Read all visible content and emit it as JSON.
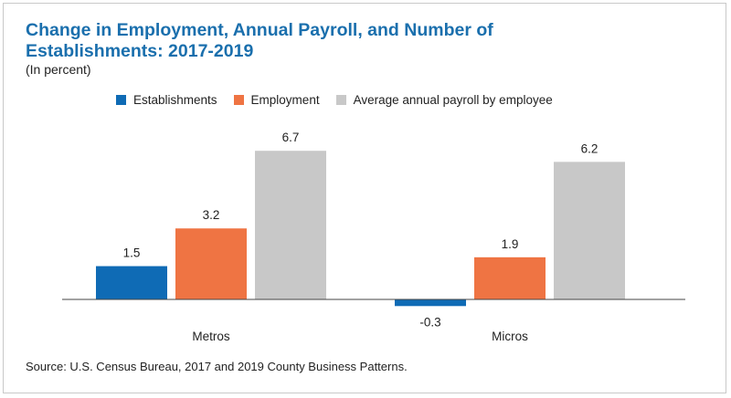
{
  "title": "Change in Employment, Annual Payroll, and Number of Establishments: 2017-2019",
  "subtitle": "(In percent)",
  "source": "Source: U.S. Census Bureau, 2017 and 2019 County Business Patterns.",
  "chart_data": {
    "type": "bar",
    "title": "Change in Employment, Annual Payroll, and Number of Establishments: 2017-2019",
    "subtitle": "(In percent)",
    "categories": [
      "Metros",
      "Micros"
    ],
    "series": [
      {
        "name": "Establishments",
        "color": "#0f6bb5",
        "values": [
          1.5,
          -0.3
        ],
        "labels": [
          "1.5",
          "-0.3"
        ]
      },
      {
        "name": "Employment",
        "color": "#ef7443",
        "values": [
          3.2,
          1.9
        ],
        "labels": [
          "3.2",
          "1.9"
        ]
      },
      {
        "name": "Average annual payroll by employee",
        "color": "#c8c8c8",
        "values": [
          6.7,
          6.2
        ],
        "labels": [
          "6.7",
          "6.2"
        ]
      }
    ],
    "legend_position": "top",
    "grid": false,
    "xlabel": "",
    "ylabel": ""
  }
}
